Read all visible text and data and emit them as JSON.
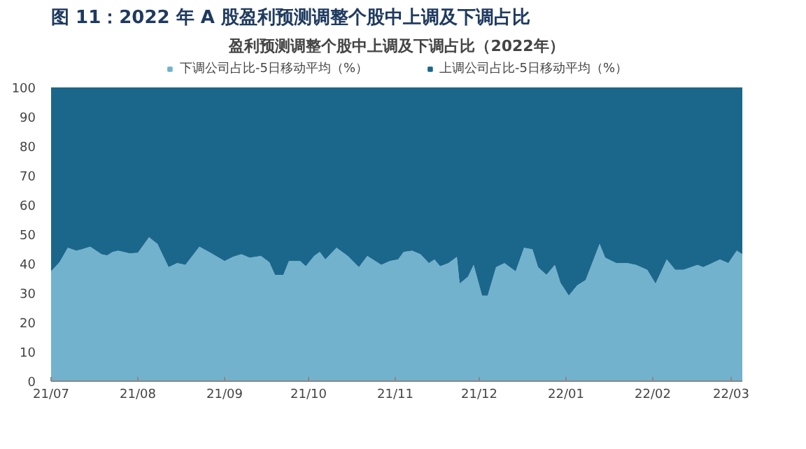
{
  "chart_data": {
    "type": "area",
    "stacked": true,
    "title": "图 11：2022 年 A 股盈利预测调整个股中上调及下调占比",
    "subtitle": "盈利预测调整个股中上调及下调占比（2022年）",
    "x": [
      "2021-07-01",
      "2021-07-04",
      "2021-07-07",
      "2021-07-10",
      "2021-07-12",
      "2021-07-15",
      "2021-07-19",
      "2021-07-21",
      "2021-07-23",
      "2021-07-25",
      "2021-07-29",
      "2021-08-01",
      "2021-08-05",
      "2021-08-08",
      "2021-08-12",
      "2021-08-15",
      "2021-08-18",
      "2021-08-23",
      "2021-08-27",
      "2021-09-01",
      "2021-09-04",
      "2021-09-07",
      "2021-09-10",
      "2021-09-14",
      "2021-09-17",
      "2021-09-19",
      "2021-09-22",
      "2021-09-24",
      "2021-09-28",
      "2021-09-30",
      "2021-10-03",
      "2021-10-05",
      "2021-10-07",
      "2021-10-11",
      "2021-10-15",
      "2021-10-19",
      "2021-10-22",
      "2021-10-27",
      "2021-10-30",
      "2021-11-02",
      "2021-11-04",
      "2021-11-07",
      "2021-11-10",
      "2021-11-13",
      "2021-11-15",
      "2021-11-17",
      "2021-11-20",
      "2021-11-23",
      "2021-11-24",
      "2021-11-27",
      "2021-11-29",
      "2021-12-02",
      "2021-12-04",
      "2021-12-07",
      "2021-12-10",
      "2021-12-14",
      "2021-12-17",
      "2021-12-20",
      "2021-12-22",
      "2021-12-25",
      "2021-12-28",
      "2021-12-30",
      "2022-01-02",
      "2022-01-05",
      "2022-01-08",
      "2022-01-13",
      "2022-01-15",
      "2022-01-19",
      "2022-01-23",
      "2022-01-26",
      "2022-01-30",
      "2022-02-02",
      "2022-02-06",
      "2022-02-09",
      "2022-02-12",
      "2022-02-17",
      "2022-02-19",
      "2022-02-25",
      "2022-02-28",
      "2022-03-03",
      "2022-03-05"
    ],
    "series": [
      {
        "name": "下调公司占比-5日移动平均（%）",
        "color": "#72b2cc",
        "values": [
          37.4,
          40.5,
          45.4,
          44.4,
          44.9,
          45.8,
          43.2,
          42.8,
          44,
          44.4,
          43.5,
          43.7,
          49,
          46.7,
          38.8,
          40.2,
          39.6,
          45.8,
          43.7,
          40.9,
          42.3,
          43.2,
          42,
          42.6,
          40.5,
          36.2,
          36.2,
          40.9,
          40.9,
          39.1,
          42.6,
          44,
          41.4,
          45.4,
          42.6,
          38.8,
          42.6,
          39.6,
          40.9,
          41.4,
          44,
          44.4,
          43.2,
          40.2,
          41.4,
          39.1,
          40.2,
          42.3,
          33.2,
          35.6,
          39.6,
          29.1,
          29.1,
          38.8,
          40.2,
          37.4,
          45.4,
          44.9,
          38.8,
          36.2,
          39.6,
          33.5,
          29.1,
          32.6,
          34.4,
          46.7,
          42,
          40.2,
          40.2,
          39.6,
          37.9,
          33.2,
          41.4,
          37.9,
          37.9,
          39.6,
          38.8,
          41.4,
          40.2,
          44.4,
          43.2
        ]
      },
      {
        "name": "上调公司占比-5日移动平均（%）",
        "color": "#1b678c",
        "values": [
          62.6,
          59.5,
          54.6,
          55.6,
          55.1,
          54.2,
          56.8,
          57.2,
          56,
          55.6,
          56.5,
          56.3,
          51,
          53.3,
          61.2,
          59.8,
          60.4,
          54.2,
          56.3,
          59.1,
          57.7,
          56.8,
          58,
          57.4,
          59.5,
          63.8,
          63.8,
          59.1,
          59.1,
          60.9,
          57.4,
          56,
          58.6,
          54.6,
          57.4,
          61.2,
          57.4,
          60.4,
          59.1,
          58.6,
          56,
          55.6,
          56.8,
          59.8,
          58.6,
          60.9,
          59.8,
          57.7,
          66.8,
          64.4,
          60.4,
          70.9,
          70.9,
          61.2,
          59.8,
          62.6,
          54.6,
          55.1,
          61.2,
          63.8,
          60.4,
          66.5,
          70.9,
          67.4,
          65.6,
          53.3,
          58,
          59.8,
          59.8,
          60.4,
          62.1,
          66.8,
          58.6,
          62.1,
          62.1,
          60.4,
          61.2,
          58.6,
          59.8,
          55.6,
          56.8
        ]
      }
    ],
    "xlim": [
      "2021-07-01",
      "2022-03-05"
    ],
    "xticks": [
      {
        "value": "2021-07-01",
        "label": "21/07"
      },
      {
        "value": "2021-08-01",
        "label": "21/08"
      },
      {
        "value": "2021-09-01",
        "label": "21/09"
      },
      {
        "value": "2021-10-01",
        "label": "21/10"
      },
      {
        "value": "2021-11-01",
        "label": "21/11"
      },
      {
        "value": "2021-12-01",
        "label": "21/12"
      },
      {
        "value": "2022-01-01",
        "label": "22/01"
      },
      {
        "value": "2022-02-01",
        "label": "22/02"
      },
      {
        "value": "2022-03-01",
        "label": "22/03"
      }
    ],
    "ylim": [
      0,
      100
    ],
    "yticks": [
      0,
      10,
      20,
      30,
      40,
      50,
      60,
      70,
      80,
      90,
      100
    ],
    "grid": false,
    "legend": "top"
  }
}
